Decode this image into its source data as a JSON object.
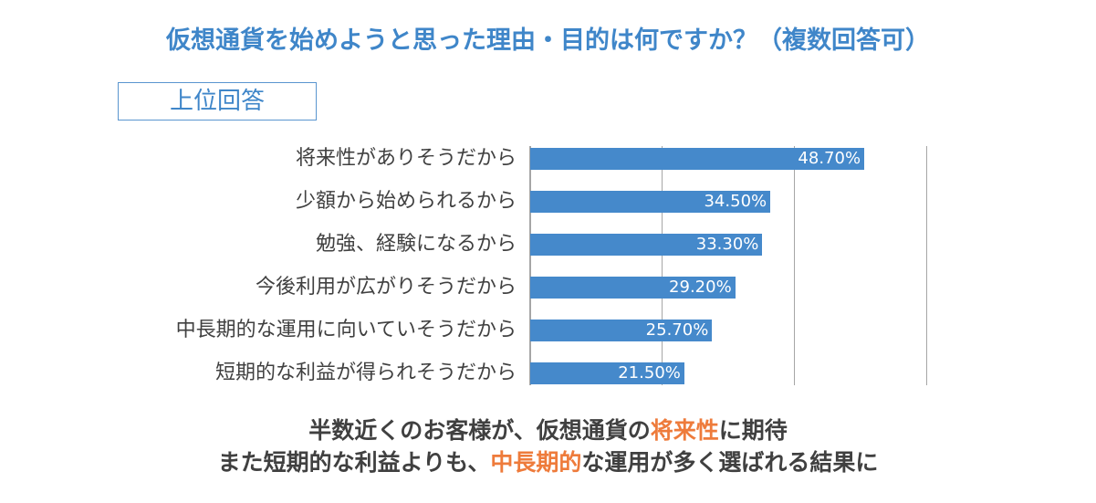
{
  "title": "仮想通貨を始めようと思った理由・目的は何ですか？（複数回答可）",
  "tag_label": "上位回答",
  "colors": {
    "bar": "#4589cb",
    "title": "#3f86c9",
    "highlight": "#ee7b3b",
    "text": "#404040"
  },
  "chart_data": {
    "type": "bar",
    "orientation": "horizontal",
    "title": "仮想通貨を始めようと思った理由・目的は何ですか？（複数回答可）",
    "subtitle": "上位回答",
    "categories": [
      "将来性がありそうだから",
      "少額から始められるから",
      "勉強、経験になるから",
      "今後利用が広がりそうだから",
      "中長期的な運用に向いていそうだから",
      "短期的な利益が得られそうだから"
    ],
    "values": [
      48.7,
      34.5,
      33.3,
      29.2,
      25.7,
      21.5
    ],
    "value_labels": [
      "48.70%",
      "34.50%",
      "33.30%",
      "29.20%",
      "25.70%",
      "21.50%"
    ],
    "xlabel": "",
    "ylabel": "",
    "xlim": [
      0,
      60
    ],
    "gridlines": [
      20,
      40,
      60
    ],
    "grid": true,
    "legend": null
  },
  "summary": {
    "line1": {
      "pre": "半数近くのお客様が、仮想通貨の",
      "highlight": "将来性",
      "post": "に期待"
    },
    "line2": {
      "pre": "また短期的な利益よりも、",
      "highlight": "中長期的",
      "post": "な運用が多く選ばれる結果に"
    }
  }
}
